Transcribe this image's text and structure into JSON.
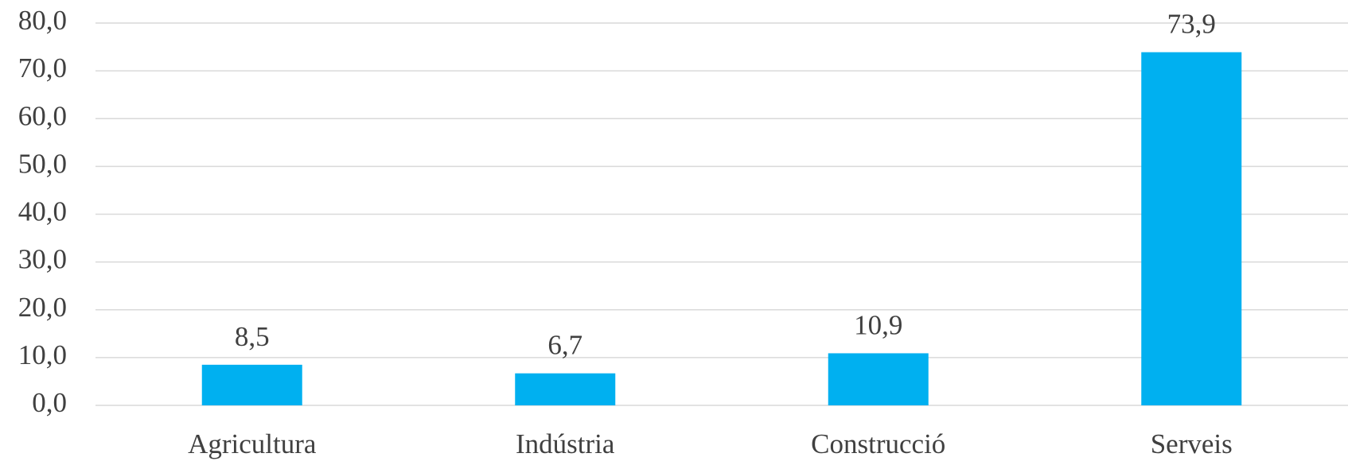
{
  "chart_data": {
    "type": "bar",
    "categories": [
      "Agricultura",
      "Indústria",
      "Construcció",
      "Serveis"
    ],
    "values": [
      8.5,
      6.7,
      10.9,
      73.9
    ],
    "value_labels": [
      "8,5",
      "6,7",
      "10,9",
      "73,9"
    ],
    "color": "#00b0f0",
    "ylim": [
      0,
      80
    ],
    "yticks": [
      {
        "value": 0,
        "label": "0,0"
      },
      {
        "value": 10,
        "label": "10,0"
      },
      {
        "value": 20,
        "label": "20,0"
      },
      {
        "value": 30,
        "label": "30,0"
      },
      {
        "value": 40,
        "label": "40,0"
      },
      {
        "value": 50,
        "label": "50,0"
      },
      {
        "value": 60,
        "label": "60,0"
      },
      {
        "value": 70,
        "label": "70,0"
      },
      {
        "value": 80,
        "label": "80,0"
      }
    ],
    "grid": true
  }
}
